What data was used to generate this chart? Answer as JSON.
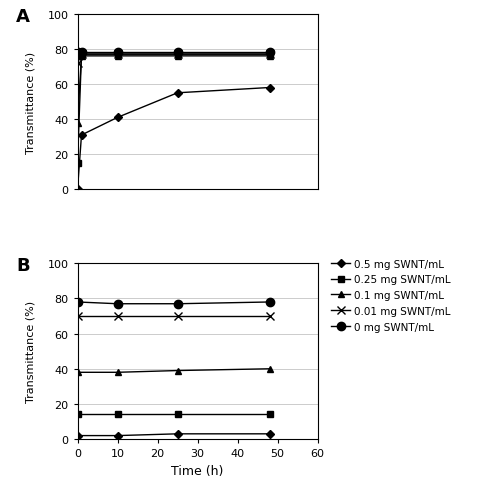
{
  "time_A": [
    0,
    1,
    10,
    25,
    48
  ],
  "series_A": {
    "0.5 mg SWNT/mL": [
      0,
      31,
      41,
      55,
      58
    ],
    "0.25 mg SWNT/mL": [
      15,
      77,
      77,
      77,
      77
    ],
    "0.1 mg SWNT/mL": [
      38,
      76,
      76,
      76,
      76
    ],
    "0.01 mg SWNT/mL": [
      72,
      77,
      77,
      77,
      77
    ],
    "0 mg SWNT/mL": [
      78,
      78,
      78,
      78,
      78
    ]
  },
  "time_B": [
    0,
    10,
    25,
    48
  ],
  "series_B": {
    "0.5 mg SWNT/mL": [
      2,
      2,
      3,
      3
    ],
    "0.25 mg SWNT/mL": [
      14,
      14,
      14,
      14
    ],
    "0.1 mg SWNT/mL": [
      38,
      38,
      39,
      40
    ],
    "0.01 mg SWNT/mL": [
      70,
      70,
      70,
      70
    ],
    "0 mg SWNT/mL": [
      78,
      77,
      77,
      78
    ]
  },
  "markers": {
    "0.5 mg SWNT/mL": "D",
    "0.25 mg SWNT/mL": "s",
    "0.1 mg SWNT/mL": "^",
    "0.01 mg SWNT/mL": "x",
    "0 mg SWNT/mL": "o"
  },
  "marker_sizes": {
    "0.5 mg SWNT/mL": 4,
    "0.25 mg SWNT/mL": 4,
    "0.1 mg SWNT/mL": 5,
    "0.01 mg SWNT/mL": 6,
    "0 mg SWNT/mL": 6
  },
  "color": "black",
  "ylim": [
    0,
    100
  ],
  "xlim": [
    0,
    60
  ],
  "xticks": [
    0,
    10,
    20,
    30,
    40,
    50,
    60
  ],
  "yticks": [
    0,
    20,
    40,
    60,
    80,
    100
  ],
  "xlabel": "Time (h)",
  "ylabel": "Transmittance (%)",
  "panel_labels": [
    "A",
    "B"
  ],
  "legend_order": [
    "0.5 mg SWNT/mL",
    "0.25 mg SWNT/mL",
    "0.1 mg SWNT/mL",
    "0.01 mg SWNT/mL",
    "0 mg SWNT/mL"
  ]
}
